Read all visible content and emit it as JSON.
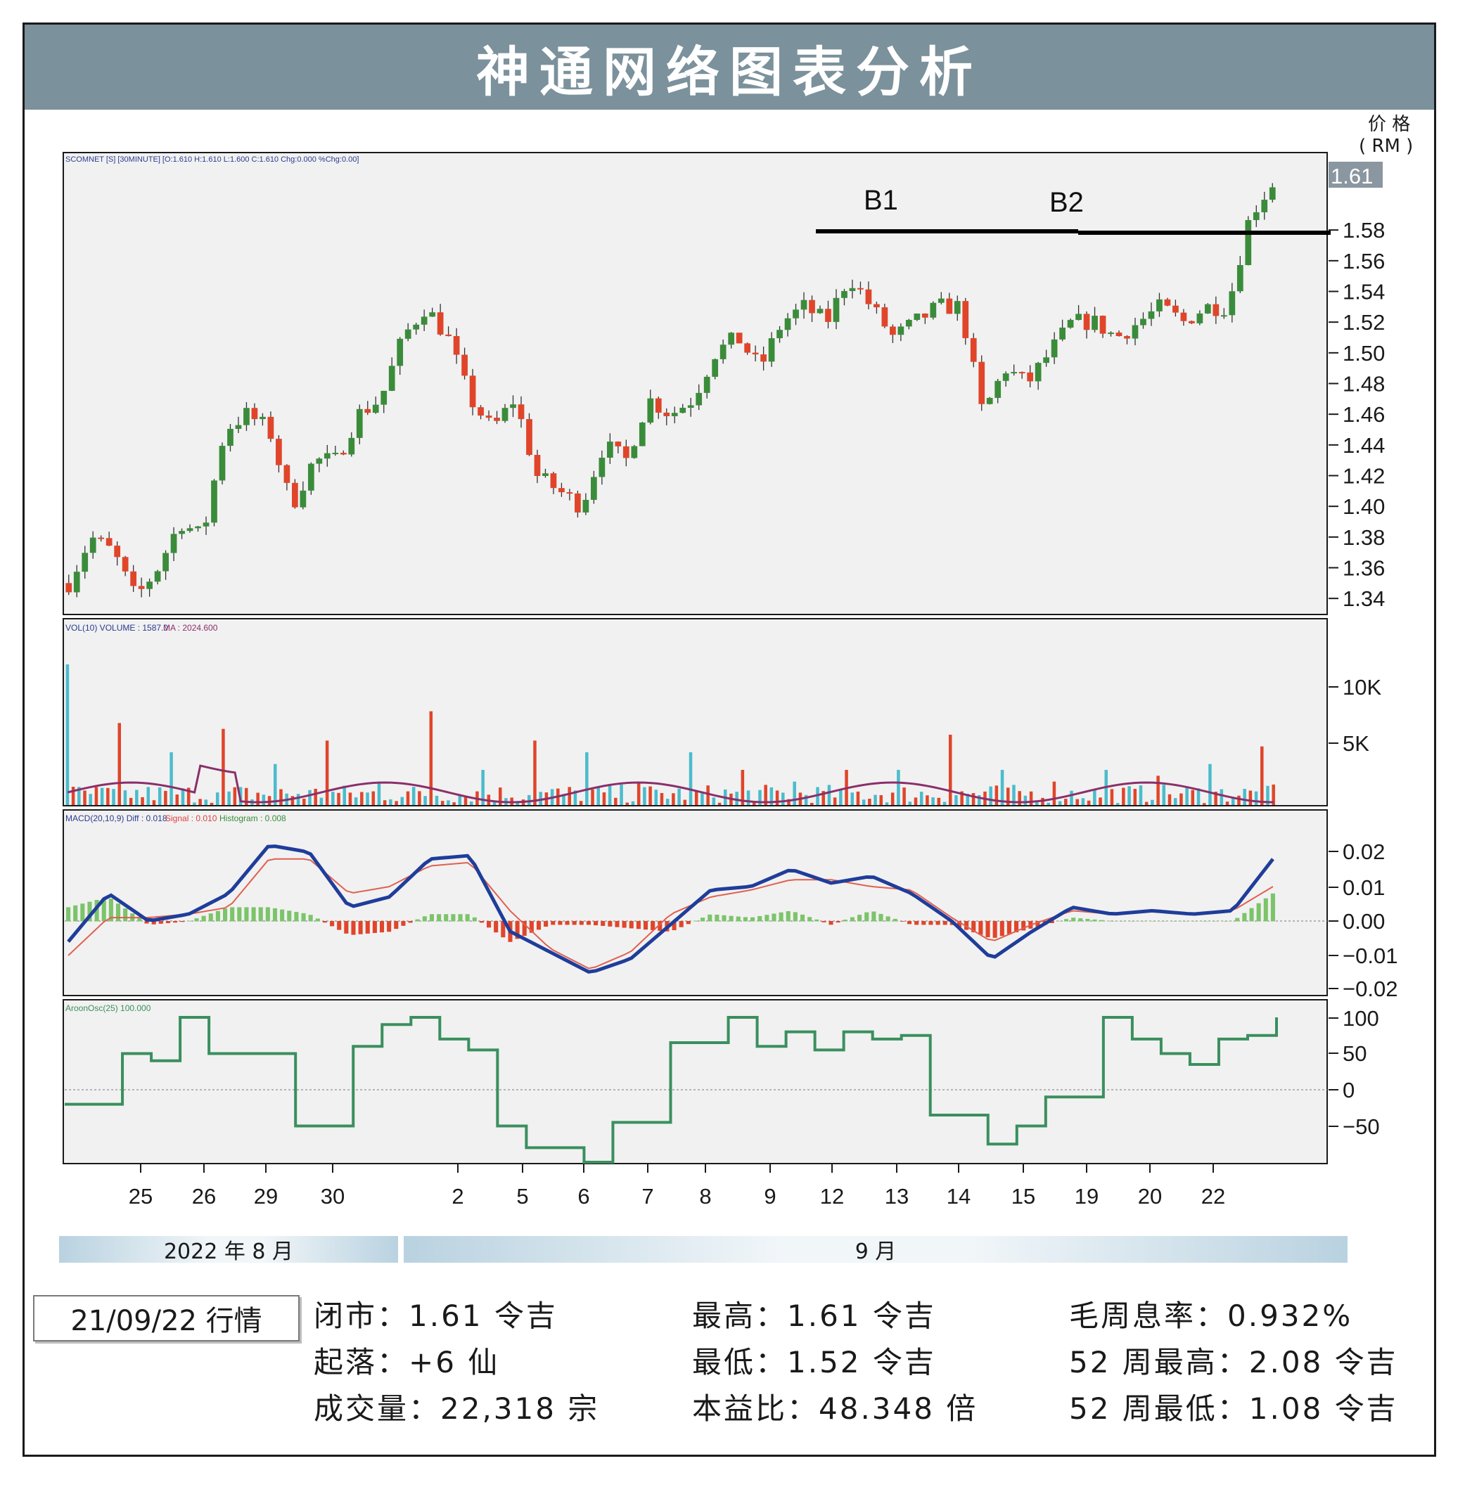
{
  "header": {
    "title": "神通网络图表分析"
  },
  "price_axis": {
    "unit_line1": "价 格",
    "unit_line2": "( RM )",
    "last_price": "1.61"
  },
  "legends": {
    "price": "SCOMNET [S] [30MINUTE] [O:1.610 H:1.610 L:1.600 C:1.610 Chg:0.000 %Chg:0.00]",
    "volume": {
      "left": "VOL(10) VOLUME : 1587.0",
      "right": "MA : 2024.600"
    },
    "macd": {
      "left": "MACD(20,10,9) Diff : 0.018",
      "mid": "Signal : 0.010",
      "right": "Histogram : 0.008"
    },
    "aroon": "AroonOsc(25) 100.000"
  },
  "annotations": {
    "b1": "B1",
    "b2": "B2"
  },
  "months": {
    "aug": "2022 年 8 月",
    "sep": "9 月"
  },
  "date_box": "21/09/22 行情",
  "stats": {
    "close": "闭市：1.61 令吉",
    "change": "起落：+6 仙",
    "volume": "成交量：22,318 宗",
    "high": "最高：1.61 令吉",
    "low": "最低：1.52 令吉",
    "pe": "本益比：48.348 倍",
    "dividend_yield": "毛周息率：0.932%",
    "wk52_high": "52 周最高：2.08 令吉",
    "wk52_low": "52 周最低：1.08 令吉"
  },
  "colors": {
    "up": "#3a8c3a",
    "down": "#e0452a",
    "macd_diff": "#1f3d9a",
    "macd_signal": "#e06050",
    "vol_ma": "#8a2f6a",
    "vol_up": "#4bbccc",
    "vol_down": "#e0452a",
    "aroon": "#3a8f5e",
    "title_bg": "#7b919c"
  },
  "chart_data": {
    "type": "candlestick",
    "x_tick_labels": [
      "25",
      "26",
      "29",
      "30",
      "2",
      "5",
      "6",
      "7",
      "8",
      "9",
      "12",
      "13",
      "14",
      "15",
      "19",
      "20",
      "22"
    ],
    "price": {
      "y_ticks": [
        1.34,
        1.36,
        1.38,
        1.4,
        1.42,
        1.44,
        1.46,
        1.48,
        1.5,
        1.52,
        1.54,
        1.56,
        1.58
      ],
      "ylim": [
        1.33,
        1.63
      ],
      "last": 1.61,
      "resistance_level": 1.57,
      "close_path": [
        1.35,
        1.38,
        1.37,
        1.34,
        1.36,
        1.39,
        1.38,
        1.45,
        1.46,
        1.45,
        1.4,
        1.43,
        1.43,
        1.46,
        1.47,
        1.51,
        1.53,
        1.51,
        1.47,
        1.45,
        1.47,
        1.42,
        1.41,
        1.4,
        1.44,
        1.43,
        1.47,
        1.46,
        1.47,
        1.5,
        1.51,
        1.49,
        1.52,
        1.53,
        1.52,
        1.55,
        1.53,
        1.51,
        1.52,
        1.53,
        1.53,
        1.46,
        1.49,
        1.48,
        1.5,
        1.52,
        1.52,
        1.51,
        1.52,
        1.53,
        1.52,
        1.53,
        1.53,
        1.59,
        1.61
      ]
    },
    "volume": {
      "y_ticks": [
        "10K",
        "5K"
      ],
      "ylim": [
        0,
        15000
      ],
      "highlight_spikes": [
        12000,
        7000,
        4500,
        6500,
        3500,
        5500,
        2000,
        8000,
        3000,
        5500,
        4500,
        2000,
        4500,
        3000,
        2000,
        3000,
        3000,
        6000,
        3000,
        2000,
        3000,
        2500,
        3500,
        5000
      ]
    },
    "macd": {
      "y_ticks": [
        "0.02",
        "0.01",
        "0.00",
        "−0.01",
        "−0.02"
      ],
      "ylim": [
        -0.022,
        0.024
      ],
      "diff_path": [
        -0.006,
        0.008,
        0.0,
        0.002,
        0.008,
        0.022,
        0.02,
        0.004,
        0.007,
        0.018,
        0.019,
        -0.003,
        -0.009,
        -0.015,
        -0.011,
        -0.001,
        0.009,
        0.01,
        0.015,
        0.011,
        0.013,
        0.008,
        0.0,
        -0.011,
        -0.003,
        0.004,
        0.002,
        0.003,
        0.002,
        0.003,
        0.018
      ],
      "signal_path": [
        -0.01,
        0.001,
        0.001,
        0.002,
        0.004,
        0.018,
        0.018,
        0.008,
        0.01,
        0.016,
        0.017,
        0.003,
        -0.008,
        -0.014,
        -0.009,
        0.002,
        0.007,
        0.009,
        0.012,
        0.012,
        0.01,
        0.009,
        0.001,
        -0.006,
        -0.001,
        0.003,
        0.002,
        0.003,
        0.002,
        0.003,
        0.01
      ]
    },
    "aroon": {
      "y_ticks": [
        "100",
        "50",
        "0",
        "−50"
      ],
      "ylim": [
        -100,
        110
      ],
      "path": [
        -20,
        -20,
        50,
        40,
        100,
        50,
        50,
        50,
        -50,
        -50,
        60,
        90,
        100,
        70,
        55,
        -50,
        -80,
        -80,
        -100,
        -45,
        -45,
        65,
        65,
        100,
        60,
        80,
        55,
        80,
        70,
        75,
        -35,
        -35,
        -75,
        -50,
        -10,
        -10,
        100,
        70,
        50,
        35,
        70,
        75,
        100
      ]
    }
  }
}
